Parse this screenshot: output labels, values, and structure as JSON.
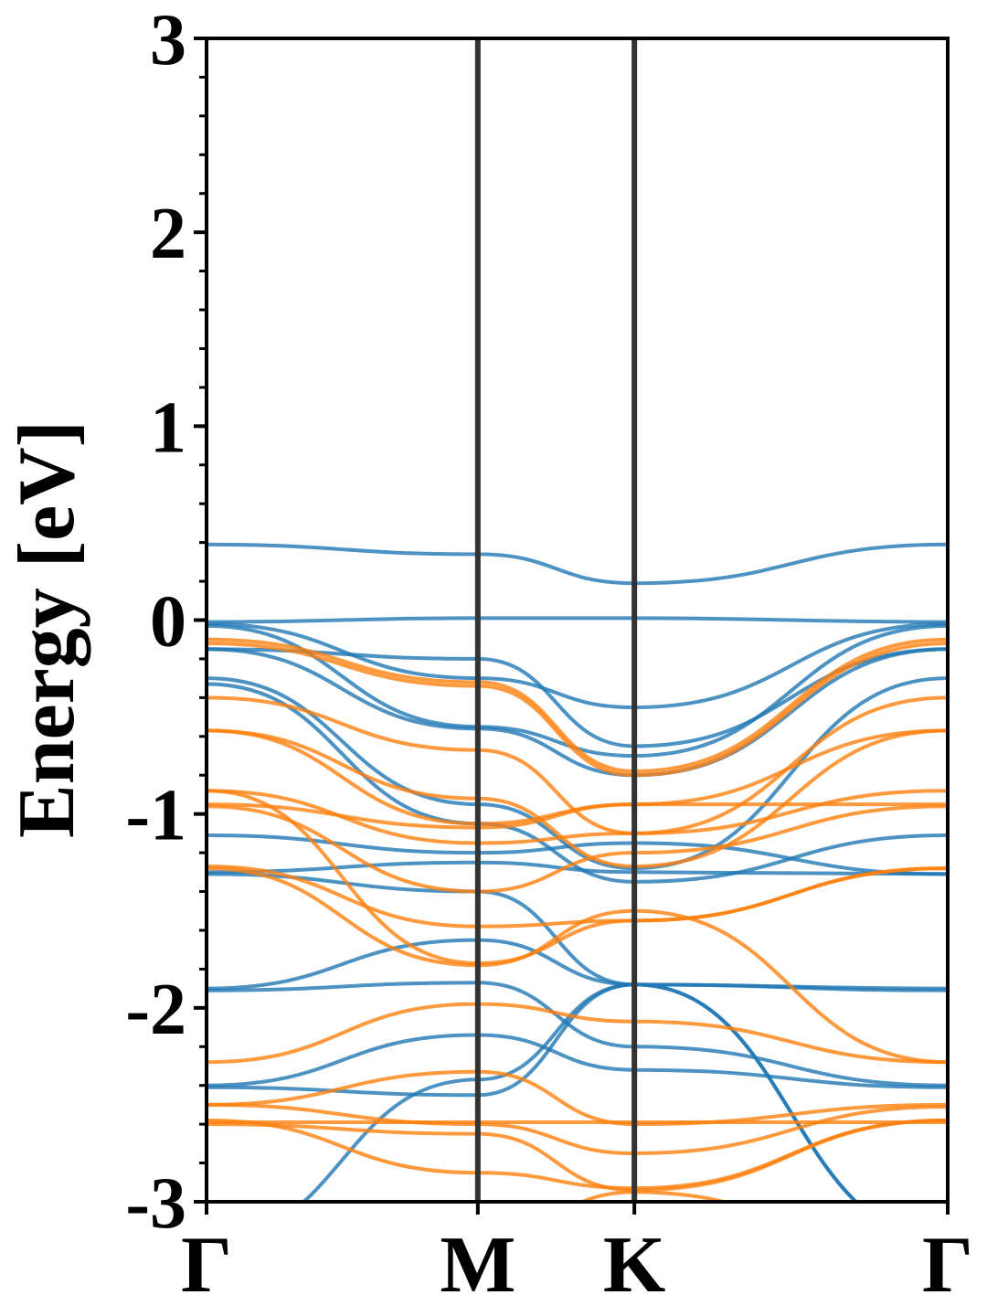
{
  "chart_data": {
    "type": "line",
    "ylabel": "Energy [eV]",
    "ylim": [
      -3,
      3
    ],
    "yticks": [
      "-3",
      "-2",
      "-1",
      "0",
      "1",
      "2",
      "3"
    ],
    "kpath": {
      "labels": [
        "Γ",
        "M",
        "K",
        "Γ"
      ],
      "positions": [
        0,
        1,
        1.577,
        2.732
      ]
    },
    "grid": false,
    "legend": "none",
    "colors": {
      "series_a": "#1f77b4",
      "series_b": "#ff7f0e",
      "frame": "#000000",
      "divider": "#333333"
    },
    "series": [
      {
        "color": "#1f77b4",
        "bands": [
          [
            0.39,
            0.34,
            0.19,
            0.39
          ],
          [
            -0.01,
            0.01,
            0.01,
            -0.01
          ],
          [
            -0.02,
            -0.3,
            -0.45,
            -0.02
          ],
          [
            -0.03,
            -0.55,
            -0.7,
            -0.03
          ],
          [
            -0.15,
            -0.56,
            -0.8,
            -0.15
          ],
          [
            -0.15,
            -0.2,
            -0.65,
            -0.15
          ],
          [
            -0.3,
            -0.95,
            -1.28,
            -0.3
          ],
          [
            -0.33,
            -1.05,
            -1.35,
            -1.11
          ],
          [
            -1.11,
            -1.2,
            -1.15,
            -1.31
          ],
          [
            -1.3,
            -1.25,
            -1.3,
            -1.31
          ],
          [
            -1.31,
            -1.4,
            -1.88,
            -1.9
          ],
          [
            -1.9,
            -1.65,
            -1.88,
            -1.91
          ],
          [
            -1.91,
            -1.87,
            -2.2,
            -2.4
          ],
          [
            -2.4,
            -2.14,
            -2.32,
            -2.41
          ],
          [
            -2.41,
            -2.45,
            -1.88,
            -3.2
          ],
          [
            -3.2,
            -2.37,
            -1.88,
            -3.2
          ]
        ]
      },
      {
        "color": "#ff7f0e",
        "bands": [
          [
            -0.1,
            -0.32,
            -0.78,
            -0.1
          ],
          [
            -0.12,
            -0.34,
            -0.8,
            -0.12
          ],
          [
            -0.4,
            -0.67,
            -1.1,
            -0.4
          ],
          [
            -0.57,
            -0.92,
            -1.27,
            -0.57
          ],
          [
            -0.57,
            -1.05,
            -0.95,
            -0.57
          ],
          [
            -0.88,
            -1.15,
            -1.1,
            -0.88
          ],
          [
            -0.95,
            -1.07,
            -0.95,
            -0.95
          ],
          [
            -0.96,
            -1.4,
            -1.2,
            -0.96
          ],
          [
            -1.27,
            -1.58,
            -1.55,
            -1.28
          ],
          [
            -0.88,
            -1.77,
            -1.55,
            -1.28
          ],
          [
            -1.28,
            -1.78,
            -1.5,
            -2.28
          ],
          [
            -2.28,
            -1.98,
            -2.07,
            -2.28
          ],
          [
            -2.5,
            -2.33,
            -2.6,
            -2.5
          ],
          [
            -2.5,
            -2.6,
            -2.75,
            -2.51
          ],
          [
            -2.58,
            -2.85,
            -2.93,
            -2.58
          ],
          [
            -2.59,
            -2.59,
            -2.59,
            -2.59
          ],
          [
            -2.6,
            -2.65,
            -2.94,
            -2.58
          ],
          [
            -3.3,
            -3.2,
            -2.95,
            -3.3
          ]
        ]
      }
    ]
  }
}
